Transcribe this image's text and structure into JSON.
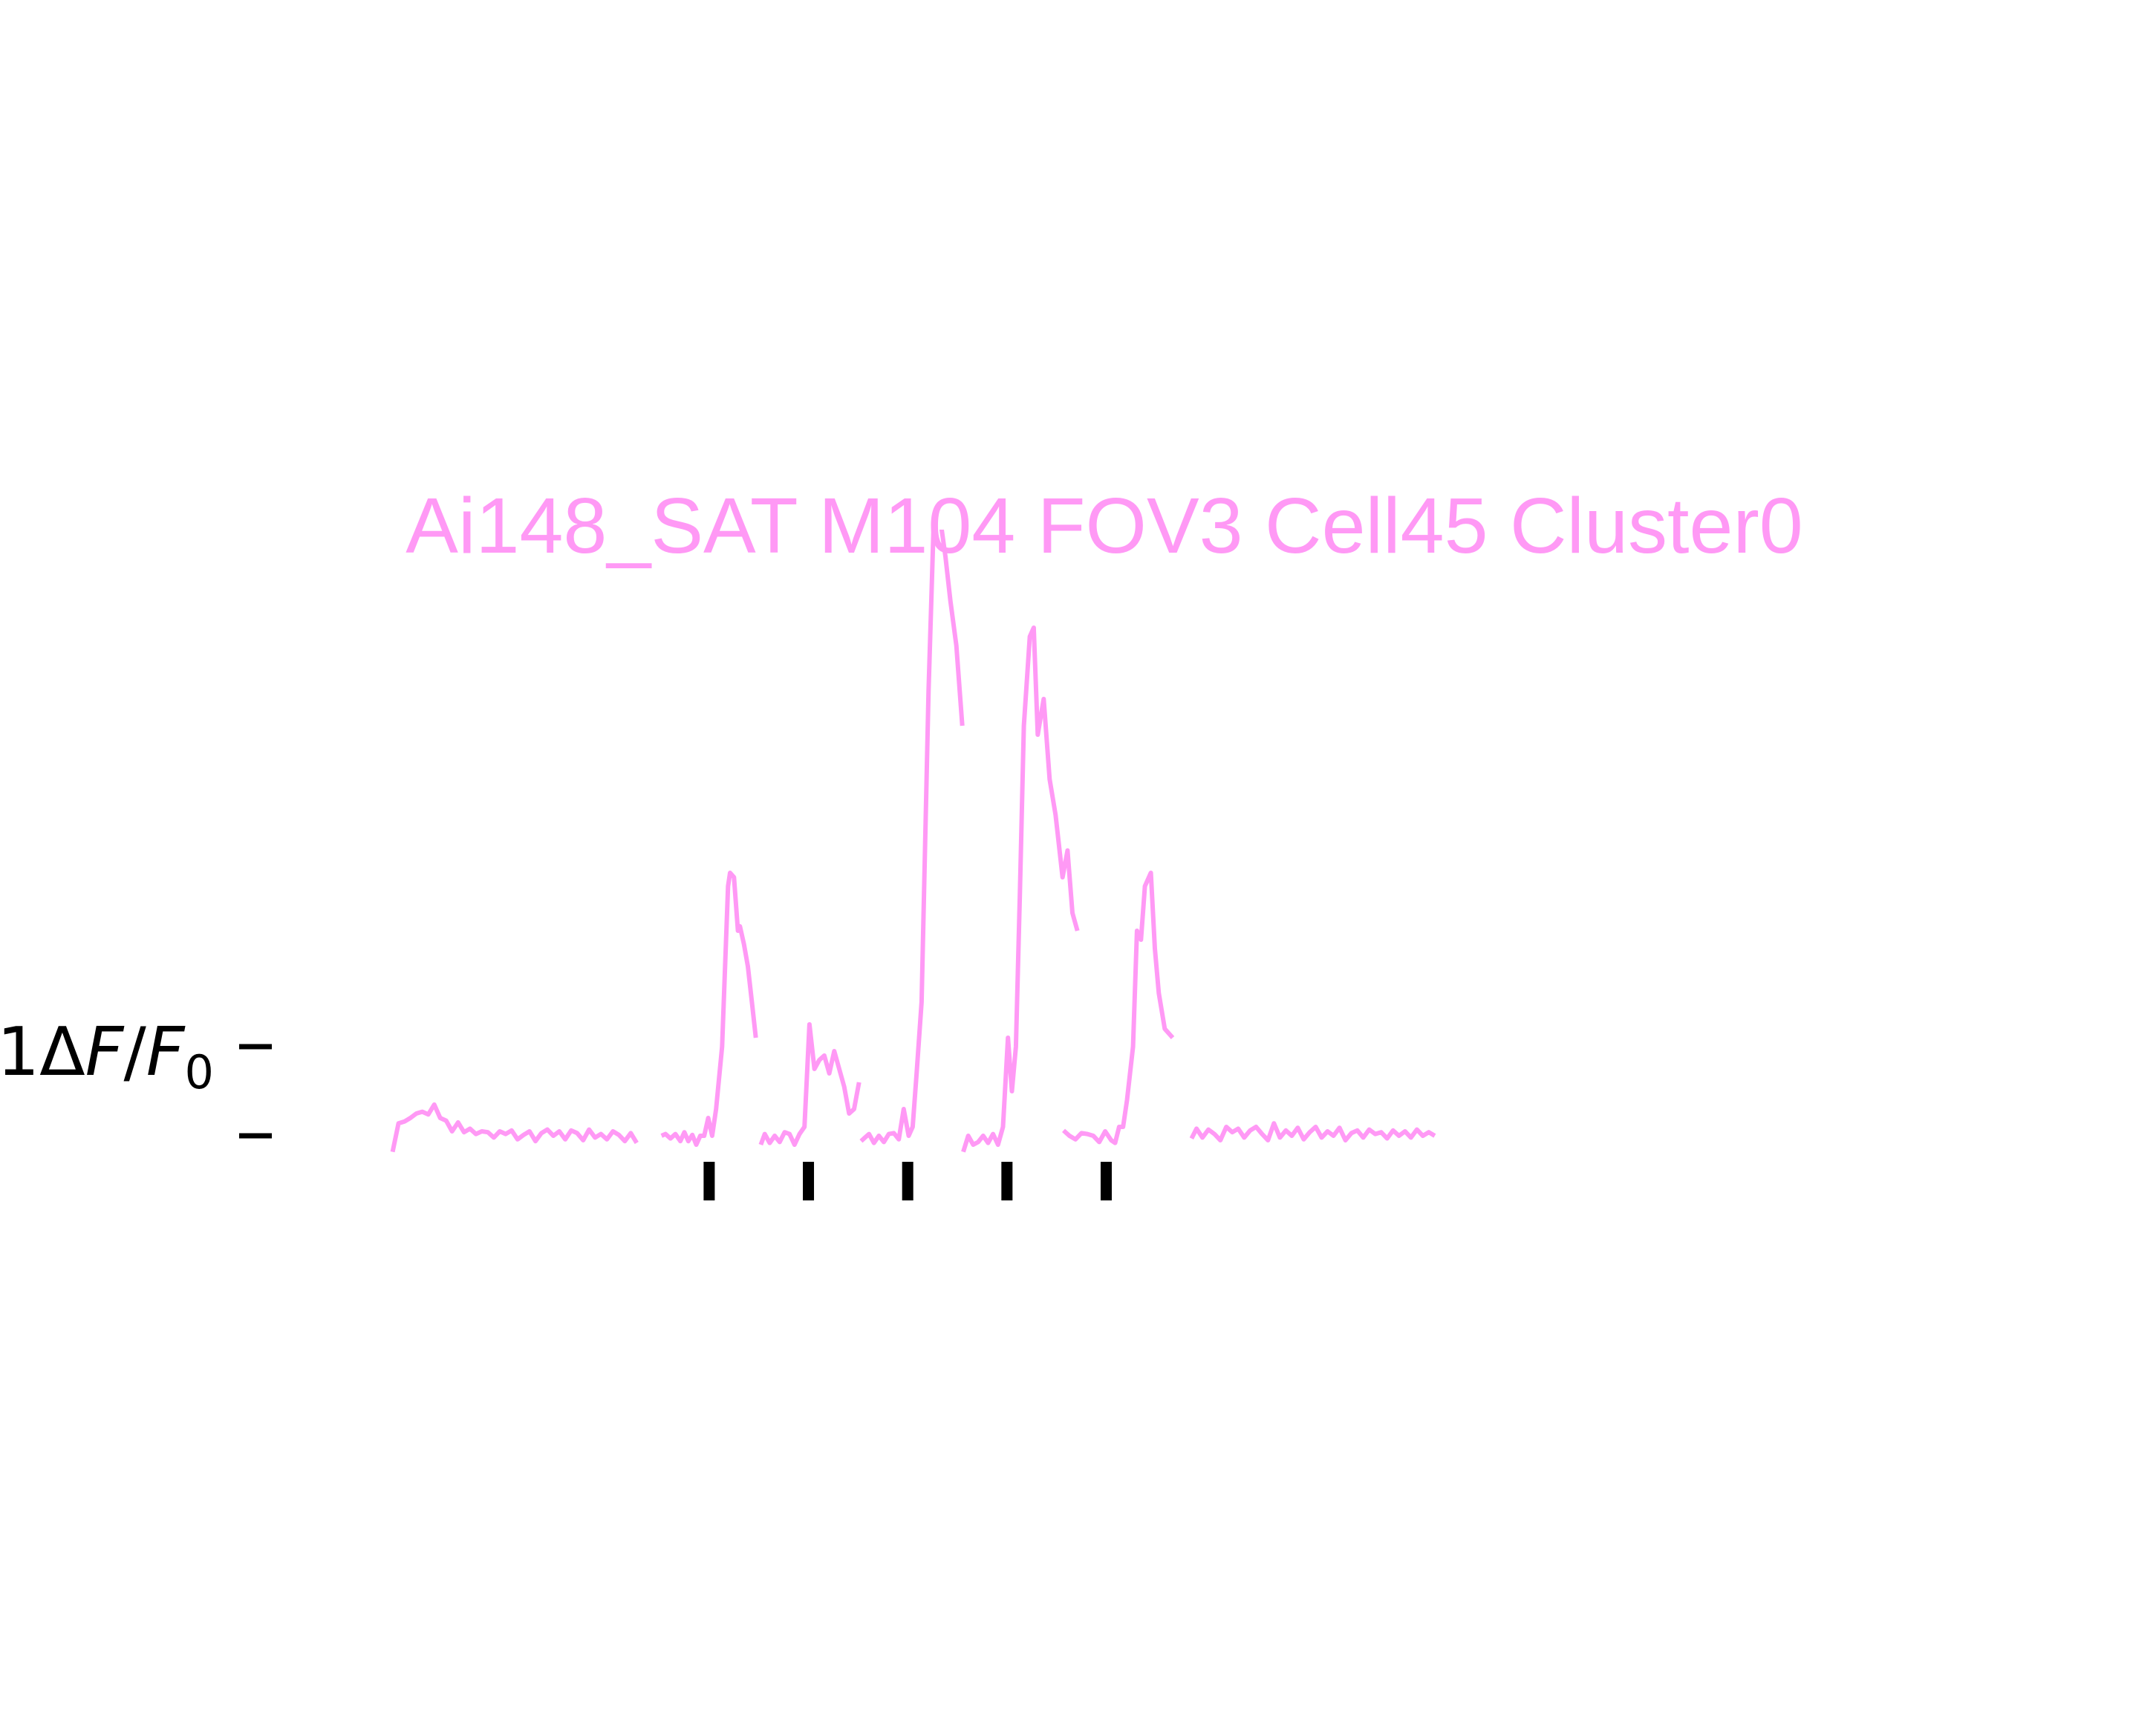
{
  "chart_data": {
    "type": "line",
    "title": "Ai148_SAT M104 FOV3 Cell45 Cluster0",
    "ylabel": "1ΔF/F0",
    "ylabel_parts": {
      "lead": "1Δ",
      "f1": "F",
      "slash": "/",
      "f2": "F",
      "sub": "0"
    },
    "xlabel": "",
    "color": "#ff99f5",
    "marker_color": "#000000",
    "scale_bar": {
      "low": 0,
      "high": 1
    },
    "ylim": [
      -0.25,
      6.8
    ],
    "xlim": [
      0,
      1590
    ],
    "grid": false,
    "legend": "none",
    "stimulus_times": [
      389,
      489,
      589,
      689,
      789
    ],
    "segments": [
      {
        "x": [
          70,
          76,
          82,
          88,
          94,
          100,
          106,
          112,
          118,
          124,
          130,
          136,
          142,
          148,
          154,
          160,
          166,
          172,
          178,
          184,
          190,
          196,
          202,
          208,
          214,
          220,
          226,
          232,
          238,
          244,
          250,
          256,
          262,
          268,
          274,
          280,
          286,
          292,
          298,
          304,
          310,
          316
        ],
        "y": [
          -0.18,
          0.14,
          0.16,
          0.2,
          0.25,
          0.27,
          0.24,
          0.35,
          0.2,
          0.17,
          0.05,
          0.15,
          0.04,
          0.08,
          0.02,
          0.05,
          0.04,
          -0.02,
          0.05,
          0.02,
          0.06,
          -0.04,
          0.01,
          0.05,
          -0.06,
          0.03,
          0.07,
          0.0,
          0.05,
          -0.04,
          0.06,
          0.03,
          -0.05,
          0.07,
          -0.02,
          0.02,
          -0.04,
          0.05,
          0.01,
          -0.06,
          0.03,
          -0.08
        ]
      },
      {
        "x": [
          341,
          345,
          350,
          355,
          360,
          364,
          368,
          372,
          376,
          380,
          384,
          388,
          392,
          396,
          402,
          408,
          410,
          414,
          418,
          420,
          424,
          428,
          432,
          436
        ],
        "y": [
          0.0,
          0.02,
          -0.03,
          0.02,
          -0.06,
          0.04,
          -0.06,
          0.01,
          -0.1,
          0.0,
          0.0,
          0.2,
          0.0,
          0.3,
          1.0,
          2.8,
          2.95,
          2.9,
          2.3,
          2.35,
          2.15,
          1.9,
          1.5,
          1.1
        ]
      },
      {
        "x": [
          441,
          445,
          450,
          455,
          460,
          465,
          470,
          475,
          480,
          485,
          490,
          495,
          500,
          505,
          510,
          515,
          520,
          525,
          530,
          535,
          540
        ],
        "y": [
          -0.1,
          0.02,
          -0.08,
          0.0,
          -0.07,
          0.04,
          0.02,
          -0.1,
          0.02,
          0.1,
          1.25,
          0.75,
          0.85,
          0.9,
          0.7,
          0.95,
          0.75,
          0.55,
          0.25,
          0.3,
          0.6
        ]
      },
      {
        "x": [
          542,
          546,
          550,
          555,
          560,
          565,
          570,
          575,
          580,
          585,
          590,
          594,
          598,
          603,
          610,
          615,
          622,
          627,
          632,
          638,
          644
        ],
        "y": [
          -0.06,
          -0.02,
          0.02,
          -0.08,
          0.0,
          -0.07,
          0.02,
          0.03,
          -0.04,
          0.3,
          0.0,
          0.1,
          0.7,
          1.5,
          5.0,
          6.8,
          6.9,
          6.5,
          6.0,
          5.5,
          4.6
        ]
      },
      {
        "x": [
          645,
          650,
          655,
          660,
          665,
          670,
          675,
          680,
          685,
          690,
          694,
          698,
          702,
          706,
          712,
          716,
          720,
          726,
          732,
          738,
          745,
          750,
          755,
          760
        ],
        "y": [
          -0.18,
          0.0,
          -0.1,
          -0.07,
          0.0,
          -0.08,
          0.02,
          -0.1,
          0.1,
          1.1,
          0.5,
          1.0,
          2.7,
          4.6,
          5.6,
          5.7,
          4.5,
          4.9,
          4.0,
          3.6,
          2.9,
          3.2,
          2.5,
          2.3
        ]
      },
      {
        "x": [
          746,
          752,
          758,
          764,
          770,
          776,
          782,
          788,
          794,
          798,
          802,
          806,
          810,
          816,
          820,
          824,
          828,
          834,
          838,
          842,
          848,
          856
        ],
        "y": [
          0.06,
          0.0,
          -0.04,
          0.03,
          0.02,
          0.0,
          -0.07,
          0.05,
          -0.05,
          -0.08,
          0.1,
          0.1,
          0.4,
          1.0,
          2.3,
          2.2,
          2.8,
          2.95,
          2.1,
          1.6,
          1.2,
          1.1
        ]
      },
      {
        "x": [
          875,
          880,
          886,
          892,
          898,
          904,
          910,
          916,
          922,
          928,
          934,
          940,
          946,
          952,
          958,
          964,
          970,
          976,
          982,
          988,
          994,
          1000,
          1006,
          1012,
          1018,
          1024,
          1030,
          1036,
          1042,
          1048,
          1054,
          1060,
          1066,
          1072,
          1078,
          1084,
          1090,
          1096,
          1102,
          1108,
          1114,
          1120
        ],
        "y": [
          -0.03,
          0.08,
          -0.02,
          0.07,
          0.02,
          -0.05,
          0.1,
          0.04,
          0.08,
          -0.02,
          0.06,
          0.1,
          0.02,
          -0.05,
          0.14,
          -0.02,
          0.06,
          0.0,
          0.09,
          -0.04,
          0.04,
          0.1,
          -0.02,
          0.05,
          0.0,
          0.09,
          -0.05,
          0.03,
          0.06,
          -0.02,
          0.07,
          0.02,
          0.04,
          -0.03,
          0.06,
          0.0,
          0.05,
          -0.02,
          0.07,
          0.0,
          0.04,
          0.0
        ]
      }
    ]
  }
}
